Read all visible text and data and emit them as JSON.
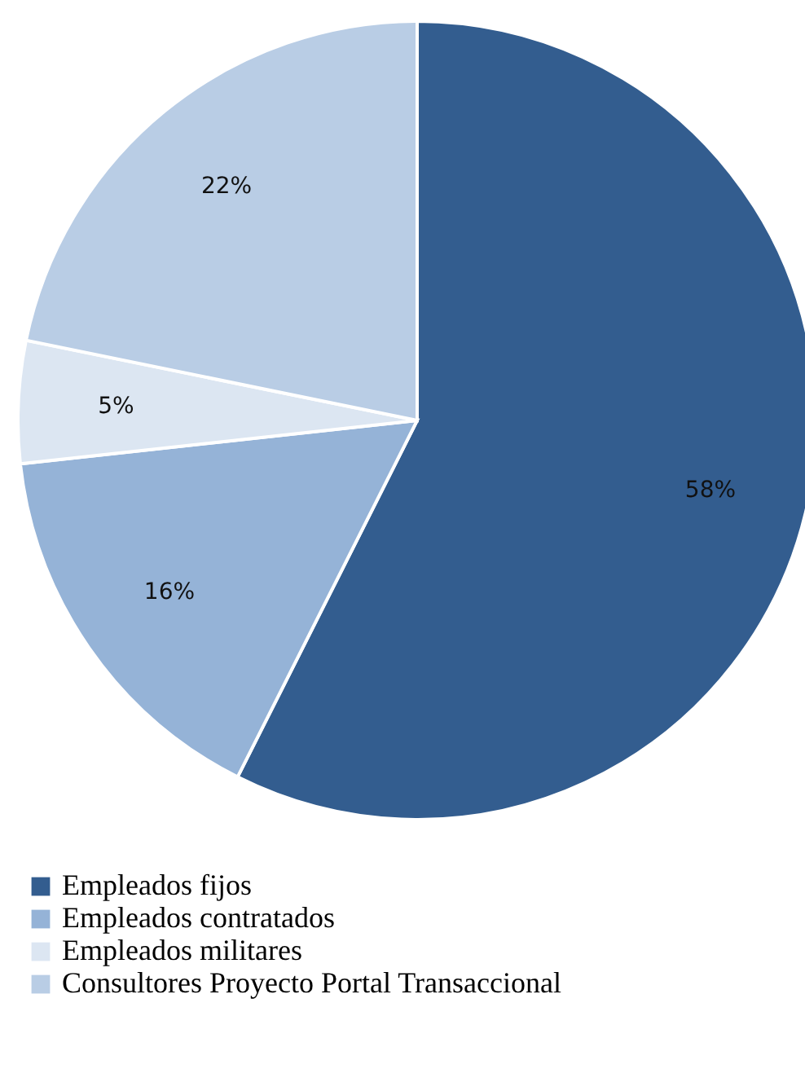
{
  "chart_data": {
    "type": "pie",
    "categories": [
      "Empleados fijos",
      "Empleados contratados",
      "Empleados militares",
      "Consultores Proyecto Portal Transaccional"
    ],
    "values": [
      58,
      16,
      5,
      22
    ],
    "colors": [
      "#335d8f",
      "#95b3d7",
      "#dce6f2",
      "#b9cde5"
    ],
    "value_labels": [
      "58%",
      "16%",
      "5%",
      "22%"
    ],
    "legend": "bottom left"
  }
}
